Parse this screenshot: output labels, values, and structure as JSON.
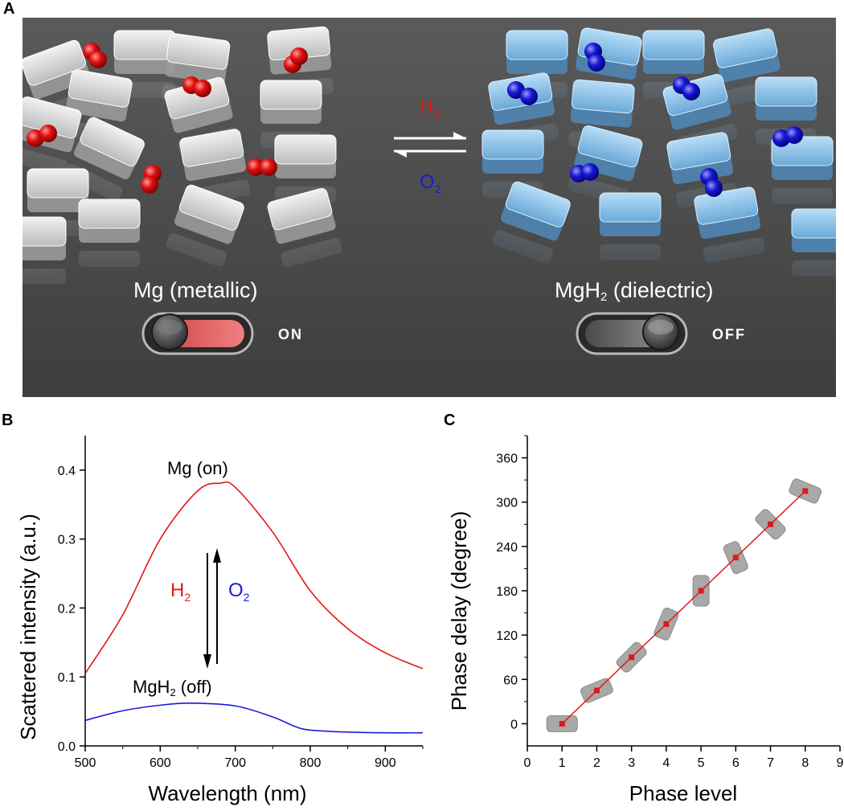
{
  "panel_labels": {
    "a": "A",
    "b": "B",
    "c": "C"
  },
  "illustration": {
    "left_label": "Mg (metallic)",
    "right_label_main": "MgH",
    "right_label_sub": "2",
    "right_label_rest": " (dielectric)",
    "switch_on": "ON",
    "switch_off": "OFF",
    "arrow_top_main": "H",
    "arrow_top_sub": "2",
    "arrow_bottom_main": "O",
    "arrow_bottom_sub": "2",
    "colors": {
      "background": "#4a4a4a",
      "h2": "#e01818",
      "o2": "#1a1ad8",
      "metal": "#d8d8d8",
      "dielectric": "#8cc4ec"
    }
  },
  "chart_data": [
    {
      "type": "line",
      "xlabel": "Wavelength (nm)",
      "ylabel": "Scattered intensity (a.u.)",
      "xlim": [
        500,
        950
      ],
      "ylim": [
        0.0,
        0.45
      ],
      "xticks": [
        "500",
        "600",
        "700",
        "800",
        "900"
      ],
      "yticks": [
        "0.0",
        "0.1",
        "0.2",
        "0.3",
        "0.4"
      ],
      "series": [
        {
          "name": "Mg (on)",
          "color": "#e01818",
          "x": [
            500,
            550,
            600,
            650,
            680,
            700,
            750,
            800,
            850,
            900,
            950
          ],
          "y": [
            0.105,
            0.19,
            0.3,
            0.37,
            0.381,
            0.375,
            0.31,
            0.225,
            0.17,
            0.135,
            0.112
          ]
        },
        {
          "name": "MgH2 (off)",
          "color": "#1a1ad8",
          "x": [
            500,
            550,
            600,
            640,
            700,
            750,
            780,
            800,
            850,
            900,
            950
          ],
          "y": [
            0.037,
            0.051,
            0.059,
            0.062,
            0.058,
            0.042,
            0.028,
            0.023,
            0.02,
            0.019,
            0.019
          ]
        }
      ],
      "annotations": {
        "mg": "Mg (on)",
        "mgh2_main": "MgH",
        "mgh2_sub": "2",
        "mgh2_rest": " (off)",
        "h2_main": "H",
        "h2_sub": "2",
        "o2_main": "O",
        "o2_sub": "2"
      }
    },
    {
      "type": "line",
      "xlabel": "Phase level",
      "ylabel": "Phase delay (degree)",
      "xlim": [
        0,
        9
      ],
      "ylim": [
        -30,
        390
      ],
      "xticks": [
        "0",
        "1",
        "2",
        "3",
        "4",
        "5",
        "6",
        "7",
        "8",
        "9"
      ],
      "yticks": [
        "0",
        "60",
        "120",
        "180",
        "240",
        "300",
        "360"
      ],
      "series": [
        {
          "name": "",
          "color": "#e01818",
          "x": [
            1,
            2,
            3,
            4,
            5,
            6,
            7,
            8
          ],
          "y": [
            0,
            45,
            90,
            135,
            180,
            225,
            270,
            315
          ]
        }
      ],
      "rod_angles_deg": [
        0,
        -22.5,
        -45,
        -67.5,
        -90,
        -112.5,
        -135,
        -157.5
      ]
    }
  ]
}
